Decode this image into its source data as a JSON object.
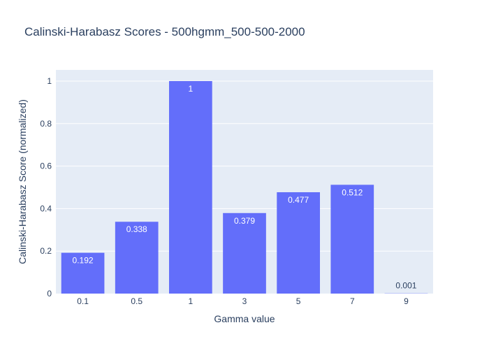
{
  "chart_data": {
    "type": "bar",
    "title": "Calinski-Harabasz Scores - 500hgmm_500-500-2000",
    "xlabel": "Gamma value",
    "ylabel": "Calinski-Harabasz Score (normalized)",
    "categories": [
      "0.1",
      "0.5",
      "1",
      "3",
      "5",
      "7",
      "9"
    ],
    "values": [
      0.192,
      0.338,
      1,
      0.379,
      0.477,
      0.512,
      0.001
    ],
    "data_labels": [
      "0.192",
      "0.338",
      "1",
      "0.379",
      "0.477",
      "0.512",
      "0.001"
    ],
    "yticks": [
      0,
      0.2,
      0.4,
      0.6,
      0.8,
      1
    ],
    "ytick_labels": [
      "0",
      "0.2",
      "0.4",
      "0.6",
      "0.8",
      "1"
    ],
    "ylim": [
      0,
      1.0526
    ],
    "grid": true,
    "legend": "none",
    "colors": {
      "bar": "#636efa",
      "plot_background": "#e5ecf6",
      "grid": "#ffffff",
      "text": "#2a3f5f"
    }
  }
}
